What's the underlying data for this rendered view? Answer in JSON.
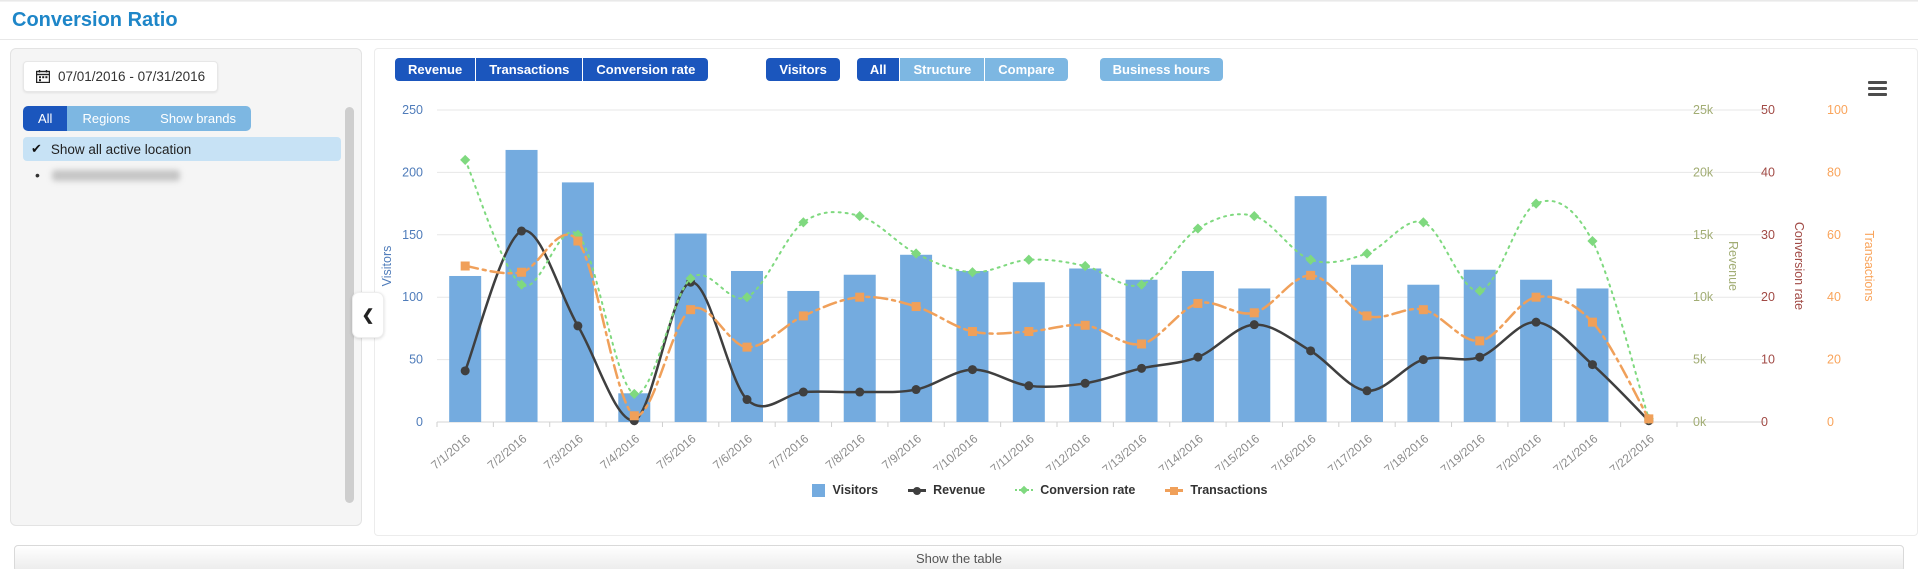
{
  "page": {
    "title": "Conversion Ratio"
  },
  "sidebar": {
    "date_range": "07/01/2016 - 07/31/2016",
    "tabs": [
      {
        "label": "All",
        "active": true
      },
      {
        "label": "Regions",
        "active": false
      },
      {
        "label": "Show brands",
        "active": false
      }
    ],
    "list": [
      {
        "label": "Show all active location",
        "selected": true
      },
      {
        "label": "",
        "redacted": true
      }
    ]
  },
  "toolbar": {
    "metric_buttons": [
      "Revenue",
      "Transactions",
      "Conversion rate"
    ],
    "visitors_button": "Visitors",
    "view_tabs": [
      {
        "label": "All",
        "active": true
      },
      {
        "label": "Structure",
        "active": false
      },
      {
        "label": "Compare",
        "active": false
      }
    ],
    "business_hours_button": "Business hours"
  },
  "footer": {
    "show_table_label": "Show the table"
  },
  "colors": {
    "accent_dark_blue": "#1b56bd",
    "accent_light_blue": "#7db7e2",
    "title_blue": "#1e86c8",
    "selected_row": "#c7e2f5",
    "bar_blue": "#74abdf",
    "revenue_line": "#3f3f3f",
    "conversion_line": "#7fd97f",
    "transactions_line": "#f0a05a"
  },
  "chart_data": {
    "type": "combo",
    "title": "",
    "grid": true,
    "legend_position": "bottom",
    "x": [
      "7/1/2016",
      "7/2/2016",
      "7/3/2016",
      "7/4/2016",
      "7/5/2016",
      "7/6/2016",
      "7/7/2016",
      "7/8/2016",
      "7/9/2016",
      "7/10/2016",
      "7/11/2016",
      "7/12/2016",
      "7/13/2016",
      "7/14/2016",
      "7/15/2016",
      "7/16/2016",
      "7/17/2016",
      "7/18/2016",
      "7/19/2016",
      "7/20/2016",
      "7/21/2016",
      "7/22/2016"
    ],
    "series": [
      {
        "name": "Visitors",
        "type": "bar",
        "axis": "visitors",
        "color": "#74abdf",
        "values": [
          117,
          218,
          192,
          23,
          151,
          121,
          105,
          118,
          134,
          121,
          112,
          123,
          114,
          121,
          107,
          181,
          126,
          110,
          122,
          114,
          107,
          0
        ]
      },
      {
        "name": "Revenue",
        "type": "spline",
        "axis": "revenue",
        "color": "#3f3f3f",
        "marker": "circle",
        "dash": "solid",
        "values": [
          4.1,
          15.3,
          7.7,
          0.1,
          11.2,
          1.8,
          2.4,
          2.4,
          2.6,
          4.2,
          2.9,
          3.1,
          4.3,
          5.2,
          7.8,
          5.7,
          2.5,
          5.0,
          5.2,
          8.0,
          4.6,
          0.1
        ]
      },
      {
        "name": "Conversion rate",
        "type": "spline",
        "axis": "conversion",
        "color": "#7fd97f",
        "marker": "diamond",
        "dash": "dot",
        "values": [
          42,
          22,
          30,
          4.5,
          23,
          20,
          32,
          33,
          27,
          24,
          26,
          25,
          22,
          31,
          33,
          26,
          27,
          32,
          21,
          35,
          29,
          0.5
        ]
      },
      {
        "name": "Transactions",
        "type": "spline",
        "axis": "transactions",
        "color": "#f0a05a",
        "marker": "square",
        "dash": "dashdot",
        "values": [
          50,
          48,
          58,
          2,
          36,
          24,
          34,
          40,
          37,
          29,
          29,
          31,
          25,
          38,
          35,
          47,
          34,
          36,
          26,
          40,
          32,
          1
        ]
      }
    ],
    "axes": {
      "visitors": {
        "title": "Visitors",
        "min": 0,
        "max": 250,
        "tick_step": 50,
        "color": "#4f7cba",
        "suffix": ""
      },
      "revenue": {
        "title": "Revenue",
        "min": 0,
        "max": 25,
        "tick_step": 5,
        "color": "#a2ad74",
        "suffix": "k"
      },
      "conversion": {
        "title": "Conversion rate",
        "min": 0,
        "max": 50,
        "tick_step": 10,
        "color": "#a14a45",
        "suffix": ""
      },
      "transactions": {
        "title": "Transactions",
        "min": 0,
        "max": 100,
        "tick_step": 20,
        "color": "#f9a45b",
        "suffix": ""
      }
    }
  }
}
